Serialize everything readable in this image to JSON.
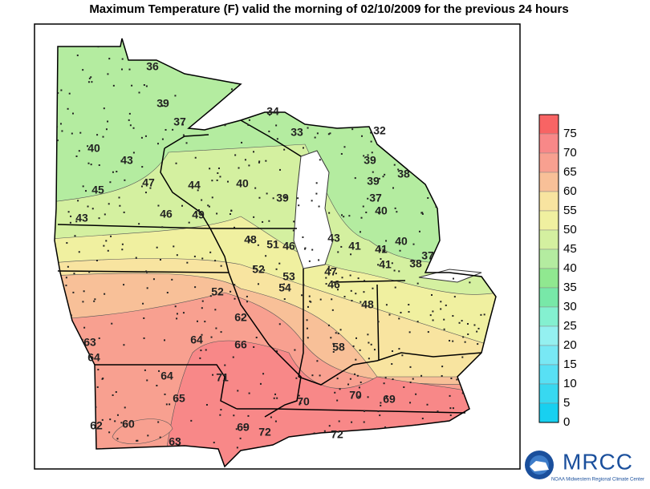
{
  "title": "Maximum Temperature (F) valid the morning of   02/10/2009 for the previous 24 hours",
  "map": {
    "labels": [
      36,
      39,
      37,
      40,
      43,
      47,
      44,
      45,
      40,
      39,
      34,
      33,
      32,
      39,
      38,
      39,
      37,
      40,
      43,
      46,
      49,
      48,
      51,
      46,
      43,
      41,
      41,
      40,
      41,
      38,
      37,
      52,
      53,
      47,
      46,
      54,
      48,
      52,
      62,
      63,
      64,
      64,
      66,
      58,
      64,
      71,
      65,
      70,
      70,
      69,
      62,
      60,
      69,
      72,
      63,
      72
    ]
  },
  "legend": {
    "items": [
      {
        "label": 75,
        "color": "#f86464"
      },
      {
        "label": 70,
        "color": "#f88888"
      },
      {
        "label": 65,
        "color": "#f8a090"
      },
      {
        "label": 60,
        "color": "#f8c098"
      },
      {
        "label": 55,
        "color": "#f8e4a0"
      },
      {
        "label": 50,
        "color": "#f0f0a0"
      },
      {
        "label": 45,
        "color": "#d4f0a0"
      },
      {
        "label": 40,
        "color": "#b4eca0"
      },
      {
        "label": 35,
        "color": "#90e890"
      },
      {
        "label": 30,
        "color": "#78e8a8"
      },
      {
        "label": 25,
        "color": "#84f0d0"
      },
      {
        "label": 20,
        "color": "#94f0f0"
      },
      {
        "label": 15,
        "color": "#78e8f4"
      },
      {
        "label": 10,
        "color": "#58e0f4"
      },
      {
        "label": 5,
        "color": "#38d8f0"
      },
      {
        "label": 0,
        "color": "#18d0f0"
      }
    ]
  },
  "logo": {
    "name": "MRCC",
    "subtitle": "NOAA Midwestern Regional Climate Center"
  }
}
